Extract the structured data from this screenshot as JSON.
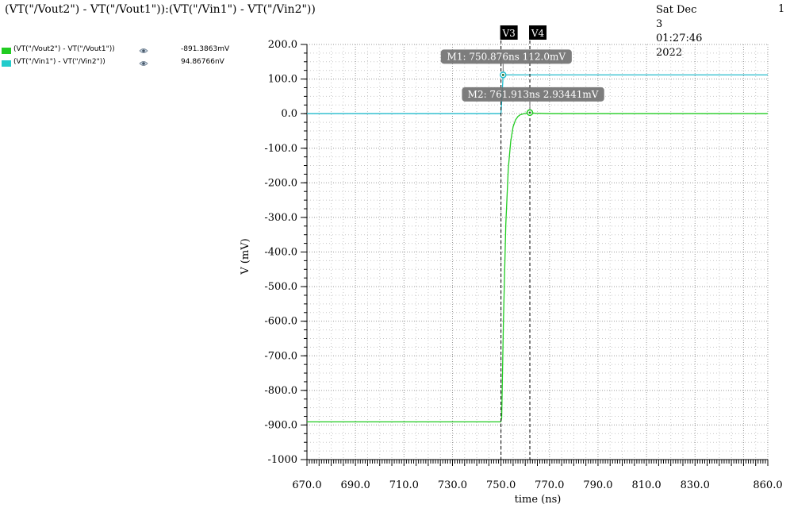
{
  "window": {
    "title": "(VT(\"/Vout2\") - VT(\"/Vout1\")):(VT(\"/Vin1\") - VT(\"/Vin2\"))",
    "date": "Sat Dec 3 01:27:46 2022",
    "page": "1"
  },
  "legend": [
    {
      "name": "(VT(\"/Vout2\") - VT(\"/Vout1\"))",
      "value": "-891.3863mV",
      "color": "#22cc22",
      "icon": "eye-icon"
    },
    {
      "name": "(VT(\"/Vin1\") - VT(\"/Vin2\"))",
      "value": "94.86766nV",
      "color": "#22bbcc",
      "icon": "eye-icon"
    }
  ],
  "chart_data": {
    "type": "line",
    "xlabel": "time (ns)",
    "ylabel": "V (mV)",
    "xlim": [
      670,
      860
    ],
    "ylim": [
      -1000,
      200
    ],
    "xticks": [
      "670.0",
      "690.0",
      "710.0",
      "730.0",
      "750.0",
      "770.0",
      "790.0",
      "810.0",
      "830.0",
      "860.0"
    ],
    "xtick_values": [
      670,
      690,
      710,
      730,
      750,
      770,
      790,
      810,
      830,
      860
    ],
    "yticks": [
      "200.0",
      "100.0",
      "0.0",
      "-100.0",
      "-200.0",
      "-300.0",
      "-400.0",
      "-500.0",
      "-600.0",
      "-700.0",
      "-800.0",
      "-900.0",
      "-1000"
    ],
    "ytick_values": [
      200,
      100,
      0,
      -100,
      -200,
      -300,
      -400,
      -500,
      -600,
      -700,
      -800,
      -900,
      -1000
    ],
    "grid": true,
    "series": [
      {
        "name": "(VT(\"/Vout2\") - VT(\"/Vout1\"))",
        "color": "#22cc22",
        "x": [
          670,
          749.9,
          750.3,
          751,
          752,
          753,
          754,
          755,
          756,
          757,
          758,
          759,
          760,
          761,
          761.913,
          764,
          770,
          800,
          860
        ],
        "y": [
          -891,
          -891,
          -880,
          -600,
          -320,
          -160,
          -80,
          -38,
          -18,
          -8,
          -3,
          -1,
          1,
          2.5,
          2.93,
          1,
          0,
          0,
          0
        ]
      },
      {
        "name": "(VT(\"/Vin1\") - VT(\"/Vin2\"))",
        "color": "#22bbcc",
        "x": [
          670,
          750,
          750.9,
          860
        ],
        "y": [
          0,
          0,
          112,
          112
        ]
      }
    ],
    "vertical_markers": [
      {
        "label": "V3",
        "x": 750
      },
      {
        "label": "V4",
        "x": 761.9
      }
    ],
    "point_markers": [
      {
        "label": "M1: 750.876ns 112.0mV",
        "x": 750.876,
        "y": 112.0,
        "series": 1
      },
      {
        "label": "M2: 761.913ns 2.93441mV",
        "x": 761.913,
        "y": 2.93441,
        "series": 0
      }
    ]
  }
}
